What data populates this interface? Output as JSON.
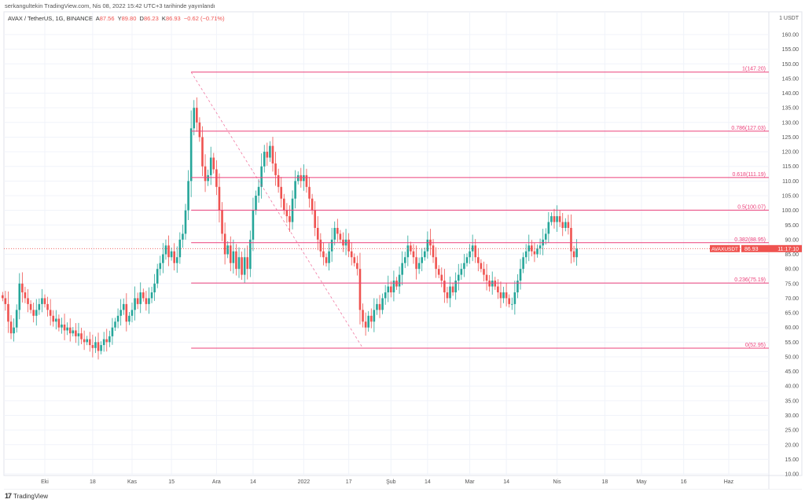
{
  "published": "serkangultekin TradingView.com, Nis 08, 2022 15:42 UTC+3 tarihinde yayınlandı",
  "legend": {
    "symbol": "AVAX / TetherUS, 1G, BINANCE",
    "open_label": "A",
    "open": "87.56",
    "high_label": "Y",
    "high": "89.80",
    "low_label": "D",
    "low": "86.23",
    "close_label": "K",
    "close": "86.93",
    "change": "−0.62 (−0.71%)"
  },
  "footer": {
    "logo": "TradingView"
  },
  "colors": {
    "up": "#26a69a",
    "down": "#ef5350",
    "fib": "#ec407a",
    "grid": "#f0f3fa"
  },
  "chart_data": {
    "type": "candlestick",
    "currency_label": "1 USDT",
    "start_date": "2021-09-16",
    "end_date": "2022-04-08",
    "ylim": [
      10,
      160
    ],
    "y_ticks": [
      "160.00",
      "155.00",
      "150.00",
      "145.00",
      "140.00",
      "135.00",
      "130.00",
      "125.00",
      "120.00",
      "115.00",
      "110.00",
      "105.00",
      "100.00",
      "95.00",
      "90.00",
      "85.00",
      "80.00",
      "75.00",
      "70.00",
      "65.00",
      "60.00",
      "55.00",
      "50.00",
      "45.00",
      "40.00",
      "35.00",
      "30.00",
      "25.00",
      "20.00",
      "15.00",
      "10.00"
    ],
    "x_ticks": [
      {
        "label": "Eki",
        "date": "2021-10-01"
      },
      {
        "label": "18",
        "date": "2021-10-18"
      },
      {
        "label": "Kas",
        "date": "2021-11-01"
      },
      {
        "label": "15",
        "date": "2021-11-15"
      },
      {
        "label": "Ara",
        "date": "2021-12-01"
      },
      {
        "label": "14",
        "date": "2021-12-14"
      },
      {
        "label": "2022",
        "date": "2022-01-01"
      },
      {
        "label": "17",
        "date": "2022-01-17"
      },
      {
        "label": "Şub",
        "date": "2022-02-01"
      },
      {
        "label": "14",
        "date": "2022-02-14"
      },
      {
        "label": "Mar",
        "date": "2022-03-01"
      },
      {
        "label": "14",
        "date": "2022-03-14"
      },
      {
        "label": "Nis",
        "date": "2022-04-01"
      },
      {
        "label": "18",
        "date": "2022-04-18"
      },
      {
        "label": "May",
        "date": "2022-05-01"
      },
      {
        "label": "16",
        "date": "2022-05-16"
      },
      {
        "label": "Haz",
        "date": "2022-06-01"
      }
    ],
    "closes": [
      70,
      68,
      62,
      58,
      60,
      66,
      75,
      72,
      70,
      68,
      66,
      64,
      66,
      68,
      70,
      68,
      66,
      64,
      62,
      63,
      60,
      61,
      59,
      60,
      58,
      59,
      57,
      58,
      56,
      55,
      56,
      54,
      53,
      55,
      52,
      54,
      56,
      55,
      57,
      60,
      62,
      64,
      66,
      68,
      62,
      64,
      66,
      70,
      68,
      72,
      70,
      68,
      70,
      72,
      75,
      80,
      82,
      85,
      88,
      84,
      86,
      82,
      84,
      90,
      92,
      100,
      110,
      128,
      135,
      130,
      125,
      115,
      110,
      112,
      118,
      114,
      108,
      100,
      92,
      85,
      88,
      82,
      86,
      80,
      84,
      78,
      84,
      80,
      90,
      100,
      105,
      108,
      115,
      120,
      118,
      122,
      116,
      112,
      108,
      104,
      100,
      98,
      96,
      104,
      110,
      112,
      110,
      112,
      108,
      104,
      100,
      94,
      90,
      86,
      84,
      82,
      86,
      90,
      94,
      92,
      90,
      88,
      90,
      86,
      84,
      82,
      80,
      66,
      62,
      60,
      64,
      62,
      66,
      68,
      66,
      70,
      72,
      74,
      72,
      76,
      74,
      78,
      82,
      84,
      88,
      86,
      84,
      80,
      82,
      84,
      86,
      90,
      88,
      84,
      80,
      78,
      76,
      72,
      70,
      74,
      72,
      76,
      78,
      80,
      82,
      84,
      86,
      88,
      84,
      82,
      80,
      78,
      76,
      74,
      76,
      74,
      72,
      70,
      72,
      70,
      68,
      68,
      72,
      76,
      80,
      84,
      86,
      88,
      86,
      85,
      87,
      88,
      90,
      92,
      96,
      98,
      96,
      98,
      96,
      94,
      96,
      94,
      86,
      84,
      86.93
    ],
    "fib_levels": [
      {
        "label": "1(147.20)",
        "value": 147.2
      },
      {
        "label": "0.786(127.03)",
        "value": 127.03
      },
      {
        "label": "0.618(111.19)",
        "value": 111.19
      },
      {
        "label": "0.5(100.07)",
        "value": 100.07
      },
      {
        "label": "0.382(88.95)",
        "value": 88.95
      },
      {
        "label": "0.236(75.19)",
        "value": 75.19
      },
      {
        "label": "0(52.95)",
        "value": 52.95
      }
    ],
    "fib_start": {
      "date": "2021-11-22",
      "price": 147.2
    },
    "fib_end": {
      "date": "2022-01-22",
      "price": 52.95
    },
    "last_price": {
      "symbol": "AVAXUSDT",
      "price": "86.93",
      "value": 86.93,
      "countdown": "11:17:10"
    }
  }
}
